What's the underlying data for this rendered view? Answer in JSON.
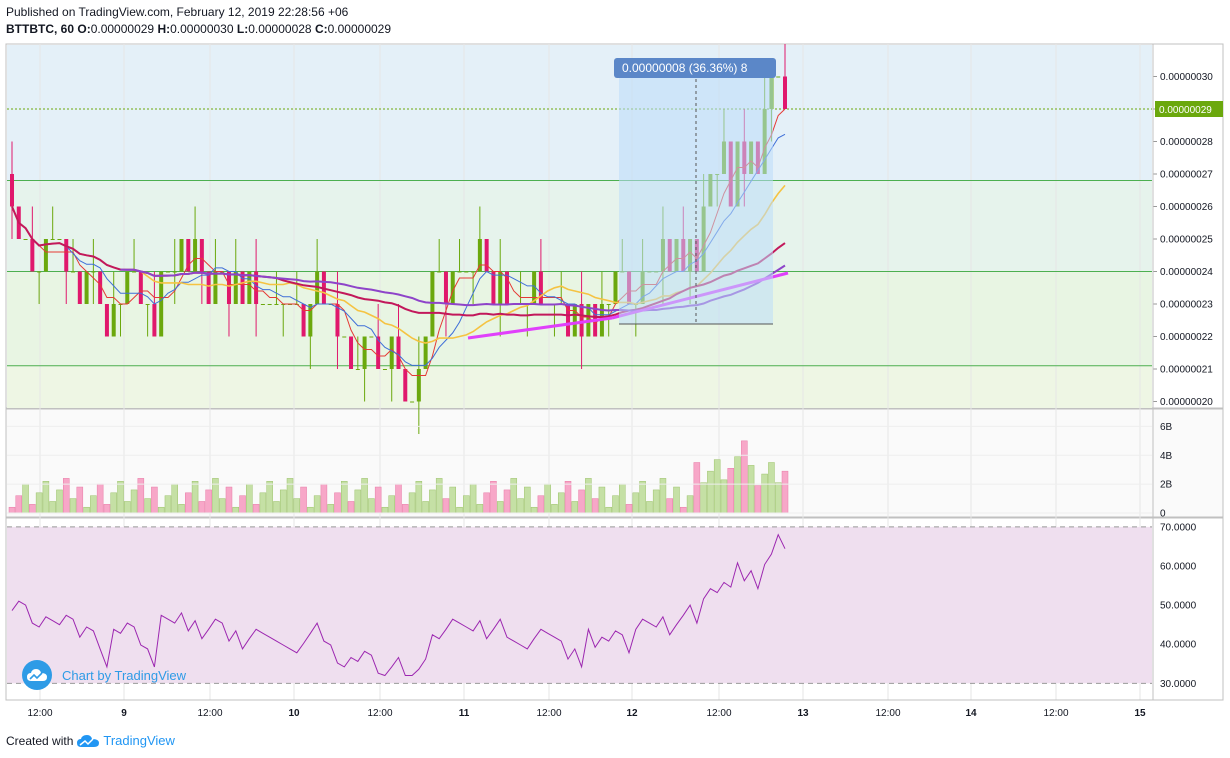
{
  "header": {
    "published": "Published on TradingView.com, February 12, 2019 22:28:56 +06",
    "symbol": "BTTBTC, 60",
    "o_label": "O:",
    "o_value": "0.00000029",
    "h_label": "H:",
    "h_value": "0.00000030",
    "l_label": "L:",
    "l_value": "0.00000028",
    "c_label": "C:",
    "c_value": "0.00000029"
  },
  "footer": {
    "created_with": "Created with",
    "brand": "TradingView"
  },
  "watermark": {
    "text": "Chart by TradingView",
    "icon": "tradingview-cloud-icon"
  },
  "colors": {
    "up": "#6ba80d",
    "down": "#e0186c",
    "vol_up": "#c5e0a5",
    "vol_down": "#f7a7c8",
    "rsi": "#9c27b0",
    "ma_purple": "#8e44c9",
    "ma_red": "#c2185b",
    "ma_yellow": "#f5c342",
    "ma_blue": "#3f6fd8",
    "ma_thin_red": "#e53935",
    "trend": "#e040fb"
  },
  "chart_data": [
    {
      "type": "candlestick",
      "pane": "price",
      "y_ticks": [
        "0.00000030",
        "0.00000029",
        "0.00000028",
        "0.00000027",
        "0.00000026",
        "0.00000025",
        "0.00000024",
        "0.00000023",
        "0.00000022",
        "0.00000021",
        "0.00000020"
      ],
      "ylim": [
        1.98e-07,
        3.1e-07
      ],
      "last_price_label": "0.00000029",
      "horizontal_lines": [
        2.9e-07,
        2.68e-07,
        2.4e-07,
        2.11e-07
      ],
      "measure_label": "0.00000008 (36.36%) 8",
      "x_labels": [
        "12:00",
        "9",
        "12:00",
        "10",
        "12:00",
        "11",
        "12:00",
        "12",
        "12:00",
        "13",
        "12:00",
        "14",
        "12:00",
        "15"
      ],
      "candles_note": "hourly BTTBTC bars, price in BTC",
      "closes": [
        26,
        25,
        25,
        24,
        24,
        25,
        25,
        25,
        24,
        24,
        23,
        24,
        24,
        23,
        22,
        23,
        23,
        24,
        24,
        23,
        23,
        22,
        24,
        24,
        24,
        25,
        24,
        25,
        24,
        23,
        24,
        24,
        23,
        24,
        23,
        24,
        23,
        23,
        23,
        23,
        23,
        23,
        23,
        22,
        23,
        24,
        23,
        23,
        22,
        22,
        21,
        21,
        22,
        22,
        21,
        21,
        22,
        21,
        20,
        20,
        21,
        22,
        24,
        24,
        23,
        24,
        24,
        24,
        24,
        25,
        24,
        23,
        24,
        23,
        23,
        23,
        23,
        24,
        23,
        23,
        23,
        23,
        22,
        23,
        22,
        23,
        22,
        23,
        23,
        24,
        24,
        23,
        23,
        24,
        24,
        24,
        25,
        24,
        25,
        24,
        25,
        24,
        26,
        27,
        27,
        28,
        26,
        28,
        27,
        28,
        27,
        29,
        30,
        30,
        29
      ]
    },
    {
      "type": "bar",
      "pane": "volume",
      "y_ticks": [
        "6B",
        "4B",
        "2B",
        "0"
      ],
      "ylim": [
        0,
        7
      ]
    },
    {
      "type": "line",
      "pane": "rsi",
      "y_ticks": [
        "70.0000",
        "60.0000",
        "50.0000",
        "40.0000",
        "30.0000"
      ],
      "ylim": [
        26,
        72
      ],
      "bands": [
        70,
        30
      ]
    }
  ]
}
